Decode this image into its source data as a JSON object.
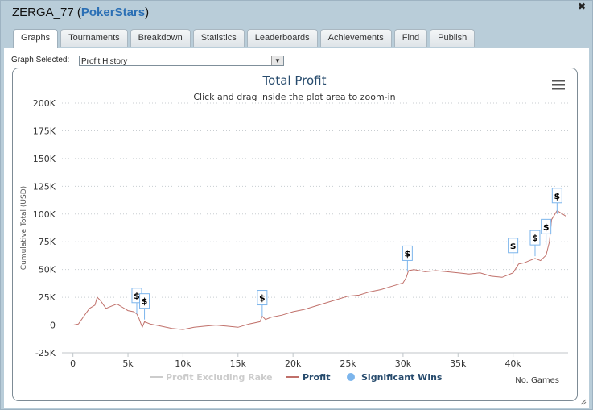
{
  "window": {
    "player": "ZERGA_77",
    "network": "PokerStars",
    "open_paren": "(",
    "close_paren": ")",
    "close_glyph": "✖"
  },
  "tabs": [
    {
      "label": "Graphs",
      "active": true
    },
    {
      "label": "Tournaments"
    },
    {
      "label": "Breakdown"
    },
    {
      "label": "Statistics"
    },
    {
      "label": "Leaderboards"
    },
    {
      "label": "Achievements"
    },
    {
      "label": "Find"
    },
    {
      "label": "Publish"
    }
  ],
  "graph_selector": {
    "label": "Graph Selected:",
    "value": "Profit History"
  },
  "chart_data": {
    "type": "line",
    "title": "Total Profit",
    "subtitle": "Click and drag inside the plot area to zoom-in",
    "xlabel": "No. Games",
    "ylabel": "Cumulative Total (USD)",
    "xlim": [
      -1000,
      45000
    ],
    "ylim": [
      -25000,
      200000
    ],
    "x_ticks": [
      0,
      5000,
      10000,
      15000,
      20000,
      25000,
      30000,
      35000,
      40000
    ],
    "x_tick_labels": [
      "0",
      "5k",
      "10k",
      "15k",
      "20k",
      "25k",
      "30k",
      "35k",
      "40k"
    ],
    "y_ticks": [
      200000,
      175000,
      150000,
      125000,
      100000,
      75000,
      50000,
      25000,
      0,
      -25000
    ],
    "y_tick_labels": [
      "200K",
      "175K",
      "150K",
      "125K",
      "100K",
      "75K",
      "50K",
      "25K",
      "0",
      "-25K"
    ],
    "series": [
      {
        "name": "Profit",
        "color": "#c0706a",
        "x": [
          0,
          500,
          1000,
          1500,
          2000,
          2200,
          2500,
          3000,
          3500,
          4000,
          4500,
          5000,
          5500,
          5800,
          6000,
          6300,
          6500,
          7000,
          8000,
          9000,
          10000,
          11000,
          12000,
          13000,
          14000,
          15000,
          16000,
          17000,
          17200,
          17500,
          18000,
          19000,
          20000,
          21000,
          22000,
          23000,
          24000,
          25000,
          26000,
          27000,
          28000,
          29000,
          30000,
          30300,
          30500,
          31000,
          32000,
          33000,
          34000,
          35000,
          36000,
          37000,
          38000,
          39000,
          40000,
          40500,
          41000,
          41500,
          42000,
          42500,
          43000,
          43300,
          43500,
          44000,
          44500,
          44800
        ],
        "values": [
          0,
          1000,
          8000,
          15000,
          18000,
          25000,
          22000,
          15000,
          17000,
          19000,
          16000,
          13000,
          12000,
          10000,
          6000,
          -2000,
          3000,
          1000,
          -1000,
          -3000,
          -4000,
          -2000,
          -1000,
          0,
          -1000,
          -2000,
          1000,
          3000,
          8000,
          5000,
          7000,
          9000,
          12000,
          14000,
          17000,
          20000,
          23000,
          26000,
          27000,
          30000,
          32000,
          35000,
          38000,
          43000,
          49000,
          50000,
          48000,
          49000,
          48000,
          47000,
          46000,
          47000,
          44000,
          43000,
          47000,
          55000,
          56000,
          58000,
          60000,
          58000,
          63000,
          75000,
          95000,
          103000,
          100000,
          98000
        ]
      },
      {
        "name": "Profit Excluding Rake",
        "color": "#cccccc",
        "visible": false
      },
      {
        "name": "Significant Wins",
        "color": "#7cb5ec",
        "marker": "circle"
      }
    ],
    "flags": [
      {
        "x": 5800,
        "y": 10000,
        "label": "$"
      },
      {
        "x": 6500,
        "y": 5000,
        "label": "$"
      },
      {
        "x": 17200,
        "y": 8000,
        "label": "$"
      },
      {
        "x": 30400,
        "y": 48000,
        "label": "$"
      },
      {
        "x": 40000,
        "y": 55000,
        "label": "$"
      },
      {
        "x": 42000,
        "y": 62000,
        "label": "$"
      },
      {
        "x": 43000,
        "y": 72000,
        "label": "$"
      },
      {
        "x": 44000,
        "y": 100000,
        "label": "$"
      }
    ],
    "legend": [
      {
        "label": "Profit Excluding Rake",
        "color": "#cccccc"
      },
      {
        "label": "Profit",
        "color": "#c0706a"
      },
      {
        "label": "Significant Wins",
        "color": "#7cb5ec"
      }
    ],
    "grid": true,
    "menu_icon": "hamburger-menu-icon"
  }
}
